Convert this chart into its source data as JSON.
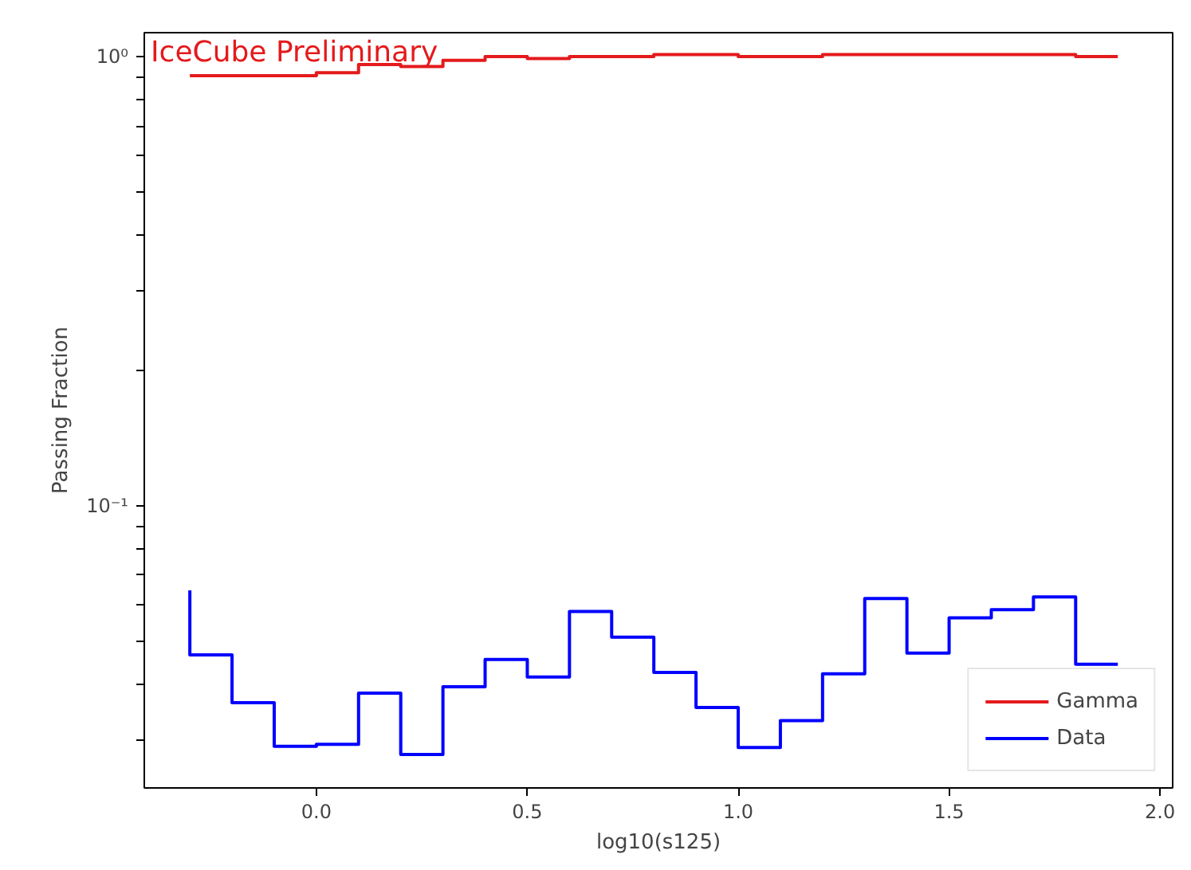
{
  "chart_data": {
    "type": "step",
    "xlabel": "log10(s125)",
    "ylabel": "Passing Fraction",
    "x": [
      -0.3,
      -0.2,
      -0.1,
      0.0,
      0.1,
      0.2,
      0.3,
      0.4,
      0.5,
      0.6,
      0.7,
      0.8,
      0.9,
      1.0,
      1.1,
      1.2,
      1.3,
      1.4,
      1.5,
      1.6,
      1.7,
      1.8,
      1.9
    ],
    "series": [
      {
        "name": "Gamma",
        "color": "#e41a1c",
        "values": [
          0.906,
          0.906,
          0.906,
          0.906,
          0.92,
          0.96,
          0.95,
          0.98,
          1.0,
          0.99,
          1.0,
          1.0,
          1.01,
          1.01,
          1.0,
          1.0,
          1.01,
          1.01,
          1.01,
          1.01,
          1.01,
          1.01,
          1.0
        ]
      },
      {
        "name": "Data",
        "color": "#0000ff",
        "values": [
          0.0647,
          0.0465,
          0.0364,
          0.0291,
          0.0294,
          0.0382,
          0.0279,
          0.0395,
          0.0454,
          0.0415,
          0.0581,
          0.0509,
          0.0425,
          0.0355,
          0.0289,
          0.0332,
          0.0422,
          0.0621,
          0.0469,
          0.0562,
          0.0586,
          0.0626,
          0.0443
        ]
      }
    ],
    "log": "y",
    "xlim": [
      -0.408,
      2.03
    ],
    "ylim": [
      0.0235,
      1.13
    ],
    "xticks": [
      {
        "value": 0.0,
        "label": "0.0"
      },
      {
        "value": 0.5,
        "label": "0.5"
      },
      {
        "value": 1.0,
        "label": "1.0"
      },
      {
        "value": 1.5,
        "label": "1.5"
      },
      {
        "value": 2.0,
        "label": "2.0"
      }
    ],
    "yticks": [
      {
        "value": 0.03,
        "label": null
      },
      {
        "value": 0.04,
        "label": null
      },
      {
        "value": 0.05,
        "label": null
      },
      {
        "value": 0.06,
        "label": null
      },
      {
        "value": 0.07,
        "label": null
      },
      {
        "value": 0.08,
        "label": null
      },
      {
        "value": 0.09,
        "label": null
      },
      {
        "value": 0.1,
        "label": "10⁻¹"
      },
      {
        "value": 0.2,
        "label": null
      },
      {
        "value": 0.3,
        "label": null
      },
      {
        "value": 0.4,
        "label": null
      },
      {
        "value": 0.5,
        "label": null
      },
      {
        "value": 0.6,
        "label": null
      },
      {
        "value": 0.7,
        "label": null
      },
      {
        "value": 0.8,
        "label": null
      },
      {
        "value": 0.9,
        "label": null
      },
      {
        "value": 1,
        "label": "10⁰"
      }
    ],
    "annotations": [
      "IceCube Preliminary"
    ],
    "legend": "bottom right",
    "grid": false
  }
}
